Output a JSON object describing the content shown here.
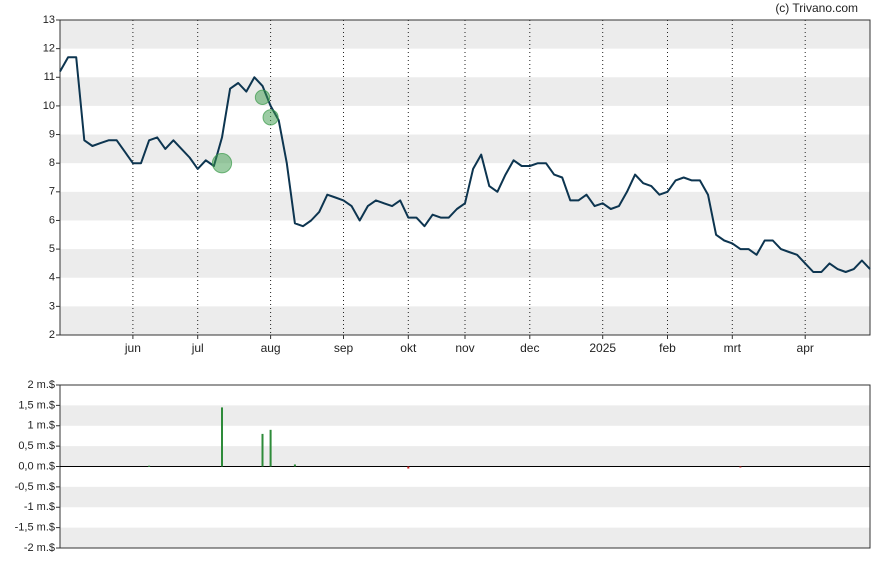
{
  "credit": "(c) Trivano.com",
  "chart_data": [
    {
      "type": "line",
      "categories": [
        null,
        null,
        null,
        null,
        null,
        null,
        null,
        null,
        null,
        "jun",
        null,
        null,
        null,
        null,
        null,
        null,
        null,
        "jul",
        null,
        null,
        null,
        null,
        null,
        null,
        null,
        null,
        "aug",
        null,
        null,
        null,
        null,
        null,
        null,
        null,
        null,
        "sep",
        null,
        null,
        null,
        null,
        null,
        null,
        null,
        "okt",
        null,
        null,
        null,
        null,
        null,
        null,
        "nov",
        null,
        null,
        null,
        null,
        null,
        null,
        null,
        "dec",
        null,
        null,
        null,
        null,
        null,
        null,
        null,
        null,
        "2025",
        null,
        null,
        null,
        null,
        null,
        null,
        null,
        "feb",
        null,
        null,
        null,
        null,
        null,
        null,
        null,
        "mrt",
        null,
        null,
        null,
        null,
        null,
        null,
        null,
        null,
        "apr",
        null,
        null,
        null,
        null,
        null,
        null,
        null,
        null
      ],
      "series": [
        {
          "color": "#0d3550",
          "values": [
            11.2,
            11.7,
            11.7,
            8.8,
            8.6,
            8.7,
            8.8,
            8.8,
            8.4,
            8.0,
            8.0,
            8.8,
            8.9,
            8.5,
            8.8,
            8.5,
            8.2,
            7.8,
            8.1,
            7.9,
            8.9,
            10.6,
            10.8,
            10.5,
            11.0,
            10.7,
            10.0,
            9.5,
            8.0,
            5.9,
            5.8,
            6.0,
            6.3,
            6.9,
            6.8,
            6.7,
            6.5,
            6.0,
            6.5,
            6.7,
            6.6,
            6.5,
            6.7,
            6.1,
            6.1,
            5.8,
            6.2,
            6.1,
            6.1,
            6.4,
            6.6,
            7.8,
            8.3,
            7.2,
            7.0,
            7.6,
            8.1,
            7.9,
            7.9,
            8.0,
            8.0,
            7.6,
            7.5,
            6.7,
            6.7,
            6.9,
            6.5,
            6.6,
            6.4,
            6.5,
            7.0,
            7.6,
            7.3,
            7.2,
            6.9,
            7.0,
            7.4,
            7.5,
            7.4,
            7.4,
            6.9,
            5.5,
            5.3,
            5.2,
            5.0,
            5.0,
            4.8,
            5.3,
            5.3,
            5.0,
            4.9,
            4.8,
            4.5,
            4.2,
            4.2,
            4.5,
            4.3,
            4.2,
            4.3,
            4.6,
            4.3
          ]
        },
        {
          "type": "bubble",
          "color": "#3a9a4a",
          "values": [
            null,
            null,
            null,
            null,
            null,
            null,
            null,
            null,
            null,
            null,
            null,
            null,
            null,
            null,
            null,
            null,
            null,
            null,
            null,
            null,
            8.0,
            null,
            null,
            null,
            null,
            10.3,
            9.6,
            null,
            null,
            null,
            null,
            null,
            null,
            null,
            null,
            null,
            null,
            null,
            null,
            null,
            null,
            null,
            null,
            null,
            null,
            null,
            null,
            null,
            null,
            null,
            null,
            null,
            null,
            null,
            null,
            null,
            null,
            null,
            null,
            null,
            null,
            null,
            null,
            null,
            null,
            null,
            null,
            null,
            null,
            null,
            null,
            null,
            null,
            null,
            null,
            null,
            null,
            null,
            null,
            null,
            null,
            null,
            null,
            null,
            null,
            null,
            null,
            null,
            null,
            null,
            null,
            null,
            null,
            null,
            null,
            null,
            null,
            null,
            null,
            null,
            null
          ],
          "sizes": [
            null,
            null,
            null,
            null,
            null,
            null,
            null,
            null,
            null,
            null,
            null,
            null,
            null,
            null,
            null,
            null,
            null,
            null,
            null,
            null,
            1.45,
            null,
            null,
            null,
            null,
            0.8,
            0.9,
            null,
            null,
            null,
            null,
            null,
            null,
            null,
            null,
            null,
            null,
            null,
            null,
            null,
            null,
            null,
            null,
            null,
            null,
            null,
            null,
            null,
            null,
            null,
            null,
            null,
            null,
            null,
            null,
            null,
            null,
            null,
            null,
            null,
            null,
            null,
            null,
            null,
            null,
            null,
            null,
            null,
            null,
            null,
            null,
            null,
            null,
            null,
            null,
            null,
            null,
            null,
            null,
            null,
            null,
            null,
            null,
            null,
            null,
            null,
            null,
            null,
            null,
            null,
            null,
            null,
            null,
            null,
            null,
            null,
            null,
            null,
            null,
            null,
            null
          ]
        }
      ],
      "ylim": [
        2,
        13
      ],
      "yticks": [
        2,
        3,
        4,
        5,
        6,
        7,
        8,
        9,
        10,
        11,
        12,
        13
      ],
      "grid": true
    },
    {
      "type": "bar",
      "color_positive": "#2e8b3a",
      "color_negative": "#cc2222",
      "values": [
        null,
        null,
        null,
        null,
        null,
        null,
        null,
        null,
        null,
        null,
        null,
        0.02,
        null,
        null,
        null,
        null,
        null,
        null,
        null,
        null,
        1.45,
        null,
        null,
        null,
        null,
        0.8,
        0.9,
        null,
        null,
        0.05,
        null,
        null,
        null,
        null,
        null,
        null,
        null,
        null,
        null,
        null,
        null,
        null,
        null,
        -0.05,
        null,
        null,
        null,
        null,
        null,
        null,
        null,
        null,
        null,
        null,
        null,
        null,
        null,
        null,
        null,
        null,
        null,
        null,
        null,
        null,
        null,
        null,
        null,
        null,
        null,
        null,
        null,
        null,
        null,
        null,
        null,
        null,
        null,
        null,
        null,
        null,
        null,
        null,
        null,
        null,
        -0.02,
        null,
        null,
        null,
        null,
        null,
        null,
        null,
        null,
        null,
        null,
        null,
        null,
        null,
        null,
        null,
        null
      ],
      "ylim": [
        -2,
        2
      ],
      "yticks": [
        {
          "value": -2,
          "label": "-2 m.$"
        },
        {
          "value": -1.5,
          "label": "-1,5 m.$"
        },
        {
          "value": -1,
          "label": "-1 m.$"
        },
        {
          "value": -0.5,
          "label": "-0,5 m.$"
        },
        {
          "value": 0,
          "label": "0,0 m.$"
        },
        {
          "value": 0.5,
          "label": "0,5 m.$"
        },
        {
          "value": 1,
          "label": "1 m.$"
        },
        {
          "value": 1.5,
          "label": "1,5 m.$"
        },
        {
          "value": 2,
          "label": "2 m.$"
        }
      ],
      "grid": true
    }
  ]
}
